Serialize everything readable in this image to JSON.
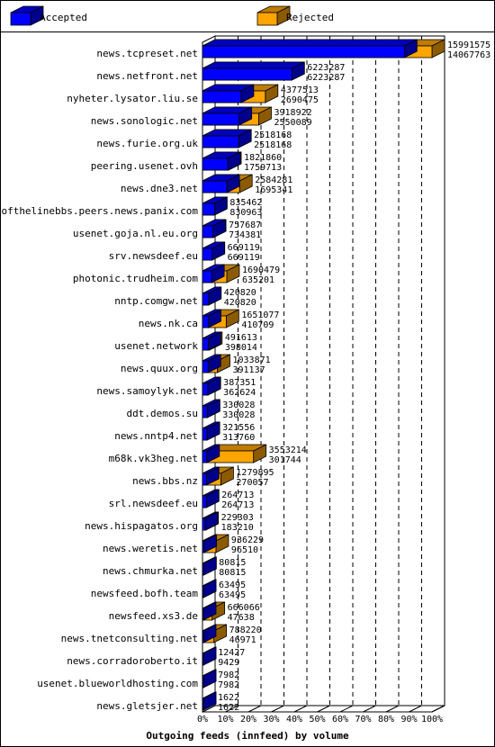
{
  "chart_data": {
    "type": "bar",
    "orientation": "horizontal",
    "title": "",
    "xlabel": "Outgoing feeds (innfeed) by volume",
    "xlim": [
      0,
      100
    ],
    "x_ticks": [
      "0%",
      "10%",
      "20%",
      "30%",
      "40%",
      "50%",
      "60%",
      "70%",
      "80%",
      "90%",
      "100%"
    ],
    "legend_position": "top",
    "series": [
      {
        "name": "Accepted",
        "color": "#0000ff"
      },
      {
        "name": "Rejected",
        "color": "#ffa500"
      }
    ],
    "max_value": 15991575,
    "rows": [
      {
        "host": "news.tcpreset.net",
        "total": "15991575",
        "accepted": "14067763"
      },
      {
        "host": "news.netfront.net",
        "total": "6223287",
        "accepted": "6223287"
      },
      {
        "host": "nyheter.lysator.liu.se",
        "total": "4377513",
        "accepted": "2690475"
      },
      {
        "host": "news.sonologic.net",
        "total": "3918922",
        "accepted": "2550089"
      },
      {
        "host": "news.furie.org.uk",
        "total": "2518168",
        "accepted": "2518168"
      },
      {
        "host": "peering.usenet.ovh",
        "total": "1821860",
        "accepted": "1759713"
      },
      {
        "host": "news.dne3.net",
        "total": "2584281",
        "accepted": "1695341"
      },
      {
        "host": "endofthelinebbs.peers.news.panix.com",
        "total": "835462",
        "accepted": "830963"
      },
      {
        "host": "usenet.goja.nl.eu.org",
        "total": "757687",
        "accepted": "734381"
      },
      {
        "host": "srv.newsdeef.eu",
        "total": "669119",
        "accepted": "669119"
      },
      {
        "host": "photonic.trudheim.com",
        "total": "1690479",
        "accepted": "635201"
      },
      {
        "host": "nntp.comgw.net",
        "total": "420820",
        "accepted": "420820"
      },
      {
        "host": "news.nk.ca",
        "total": "1651077",
        "accepted": "410709"
      },
      {
        "host": "usenet.network",
        "total": "491613",
        "accepted": "398014"
      },
      {
        "host": "news.quux.org",
        "total": "1033871",
        "accepted": "391137"
      },
      {
        "host": "news.samoylyk.net",
        "total": "387351",
        "accepted": "362624"
      },
      {
        "host": "ddt.demos.su",
        "total": "330028",
        "accepted": "330028"
      },
      {
        "host": "news.nntp4.net",
        "total": "321556",
        "accepted": "313760"
      },
      {
        "host": "m68k.vk3heg.net",
        "total": "3553214",
        "accepted": "301744"
      },
      {
        "host": "news.bbs.nz",
        "total": "1279895",
        "accepted": "270057"
      },
      {
        "host": "srl.newsdeef.eu",
        "total": "264713",
        "accepted": "264713"
      },
      {
        "host": "news.hispagatos.org",
        "total": "229303",
        "accepted": "183210"
      },
      {
        "host": "news.weretis.net",
        "total": "936229",
        "accepted": "96510"
      },
      {
        "host": "news.chmurka.net",
        "total": "80815",
        "accepted": "80815"
      },
      {
        "host": "newsfeed.bofh.team",
        "total": "63495",
        "accepted": "63495"
      },
      {
        "host": "newsfeed.xs3.de",
        "total": "666066",
        "accepted": "47638"
      },
      {
        "host": "news.tnetconsulting.net",
        "total": "788220",
        "accepted": "46971"
      },
      {
        "host": "news.corradoroberto.it",
        "total": "12427",
        "accepted": "9429"
      },
      {
        "host": "usenet.blueworldhosting.com",
        "total": "7982",
        "accepted": "7982"
      },
      {
        "host": "news.gletsjer.net",
        "total": "1622",
        "accepted": "1622"
      }
    ]
  }
}
